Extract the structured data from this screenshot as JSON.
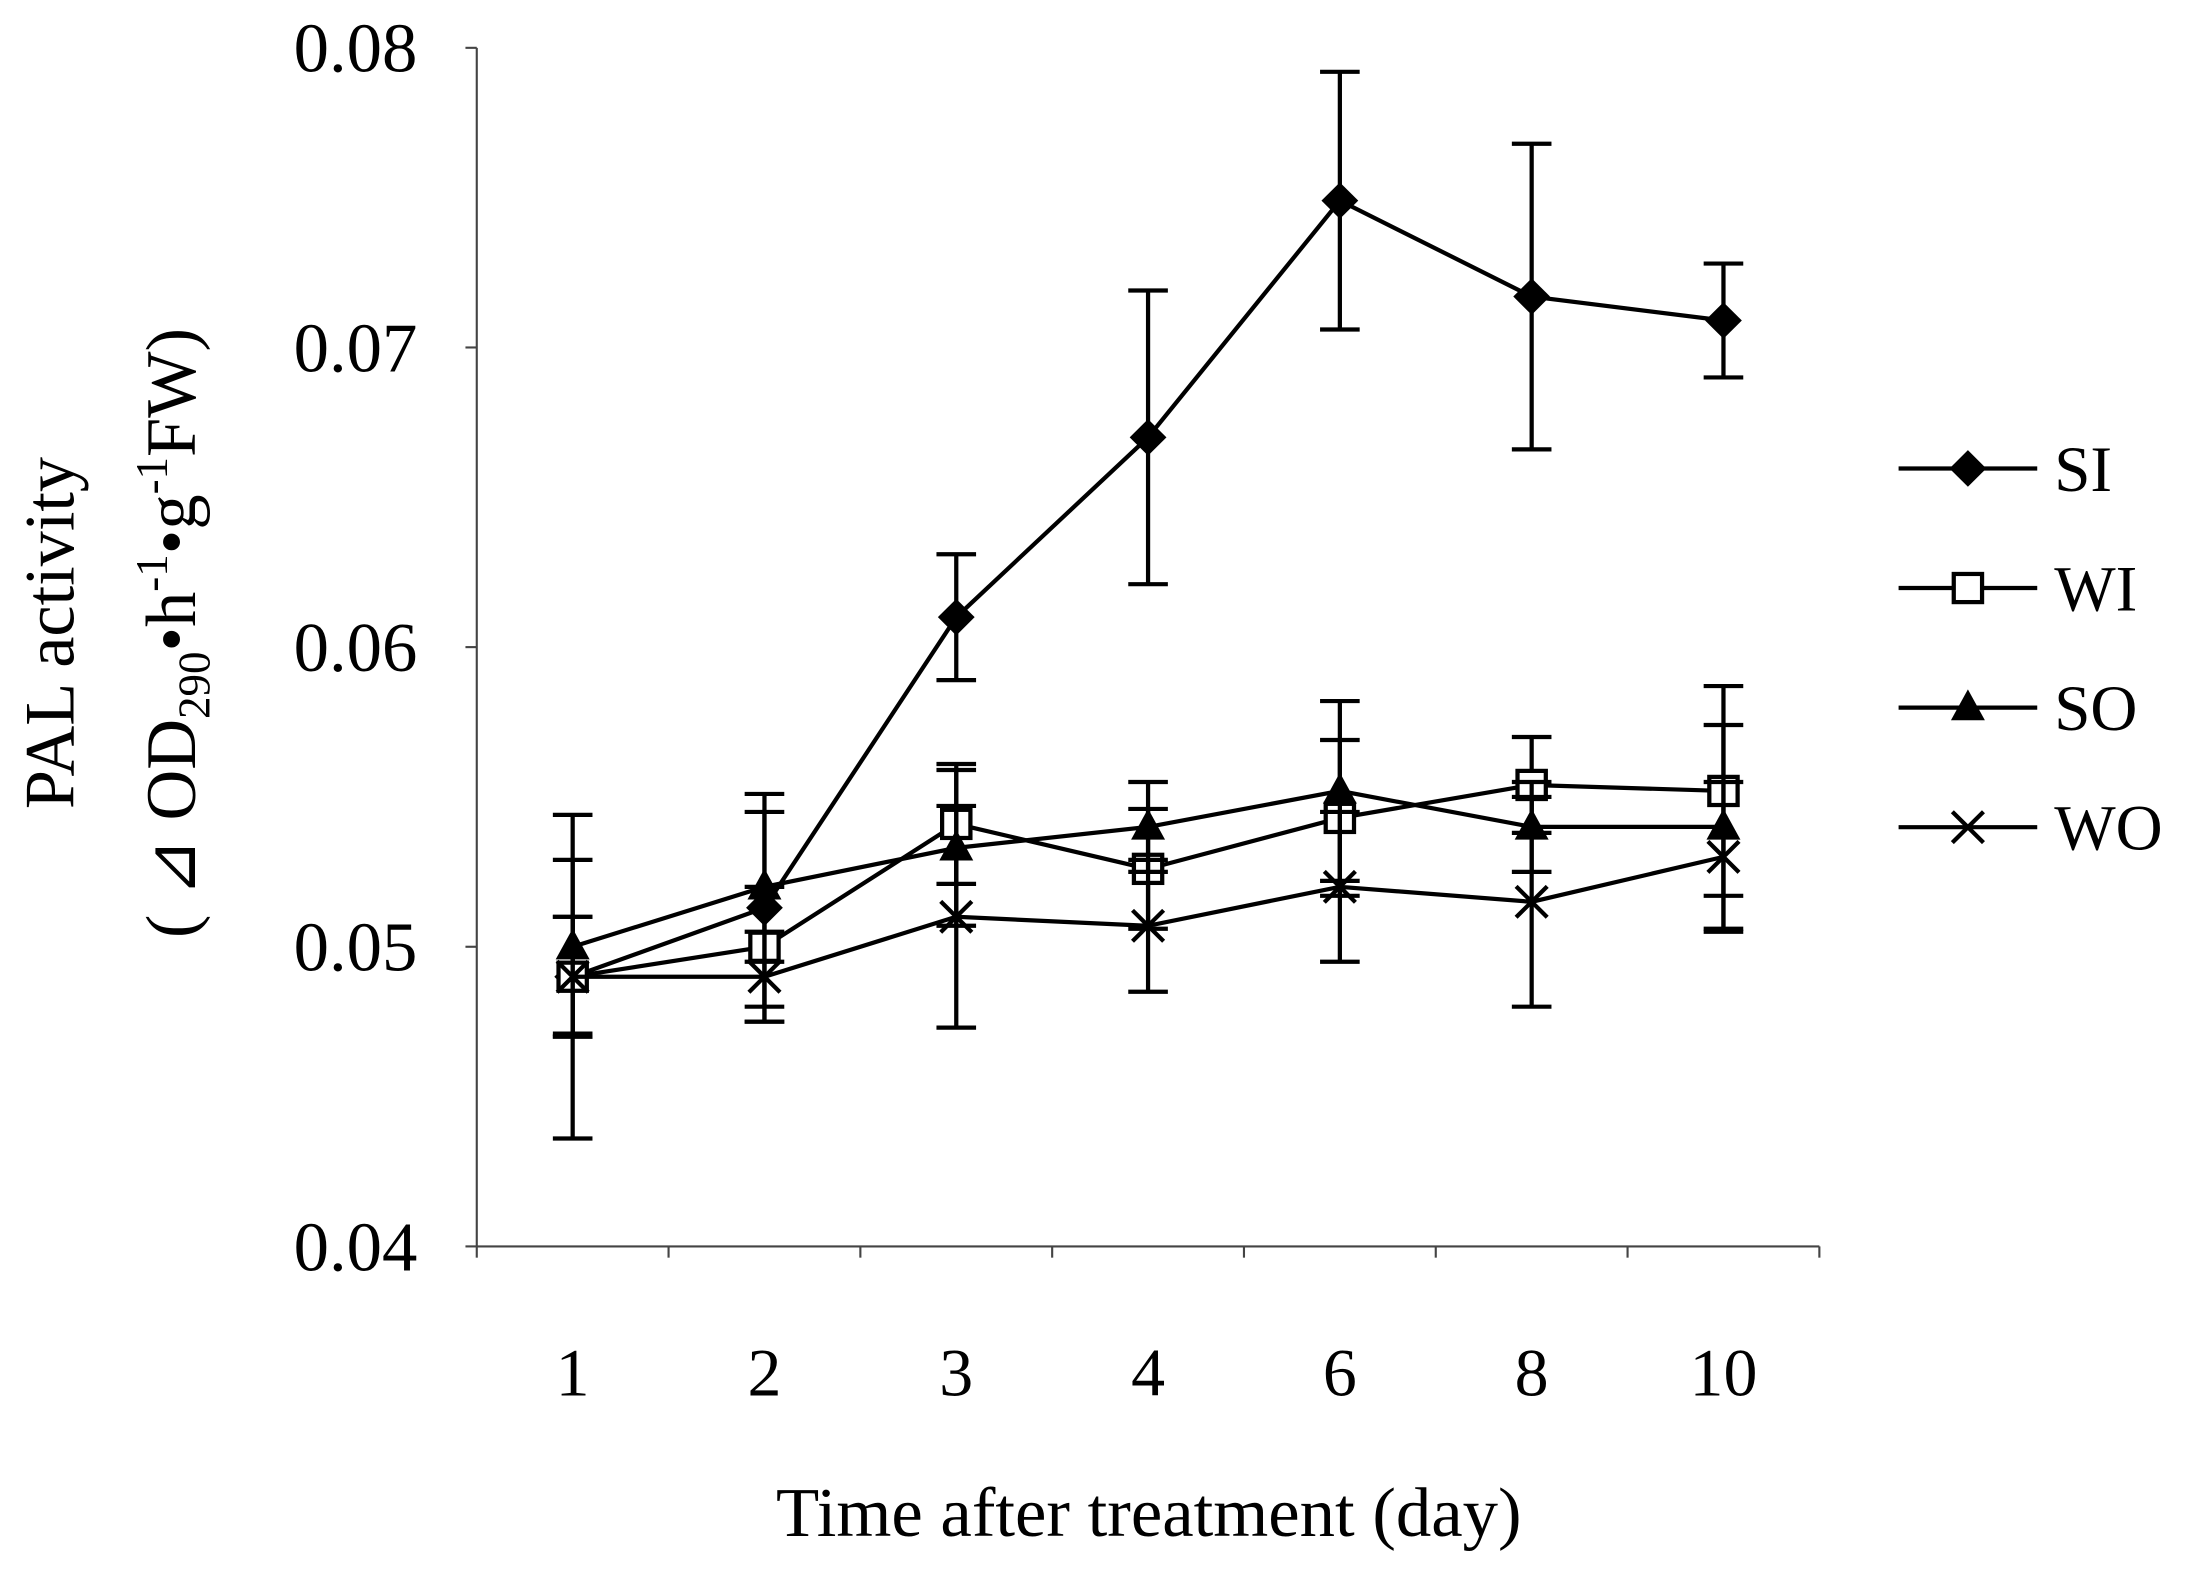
{
  "chart_data": {
    "type": "line",
    "ylabel": "PAL activity",
    "ylabel_units": {
      "open": "( ",
      "delta": "⊿",
      "od": " OD",
      "od_sub": "290",
      "bullet1": "•h",
      "h_sup": "-1",
      "bullet2": "•g",
      "g_sup": "-1",
      "fw": "FW)"
    },
    "xlabel": "Time after treatment (day)",
    "categories": [
      "1",
      "2",
      "3",
      "4",
      "6",
      "8",
      "10"
    ],
    "y_ticks": [
      "0.08",
      "0.07",
      "0.06",
      "0.05",
      "0.04"
    ],
    "ylim": [
      0.04,
      0.08
    ],
    "grid": false,
    "legend_position": "right",
    "series": [
      {
        "name": "SI",
        "marker": "diamond-filled",
        "values": [
          0.049,
          0.0513,
          0.061,
          0.067,
          0.0749,
          0.0717,
          0.0709
        ],
        "errors": [
          0.002,
          0.0038,
          0.0021,
          0.0049,
          0.0043,
          0.0051,
          0.0019
        ]
      },
      {
        "name": "WI",
        "marker": "square-open",
        "values": [
          0.049,
          0.05,
          0.0541,
          0.0526,
          0.0543,
          0.0554,
          0.0552
        ],
        "errors": [
          0.002,
          0.002,
          0.002,
          0.002,
          0.0026,
          0.0016,
          0.0035
        ]
      },
      {
        "name": "SO",
        "marker": "triangle-filled",
        "values": [
          0.05,
          0.052,
          0.0533,
          0.054,
          0.0552,
          0.054,
          0.054
        ],
        "errors": [
          0.0029,
          0.0025,
          0.0026,
          0.0015,
          0.003,
          0.0015,
          0.0034
        ]
      },
      {
        "name": "WO",
        "marker": "x",
        "values": [
          0.049,
          0.049,
          0.051,
          0.0507,
          0.052,
          0.0515,
          0.053
        ],
        "errors": [
          0.0054,
          0.0015,
          0.0037,
          0.0022,
          0.0025,
          0.0035,
          0.0025
        ]
      }
    ]
  }
}
